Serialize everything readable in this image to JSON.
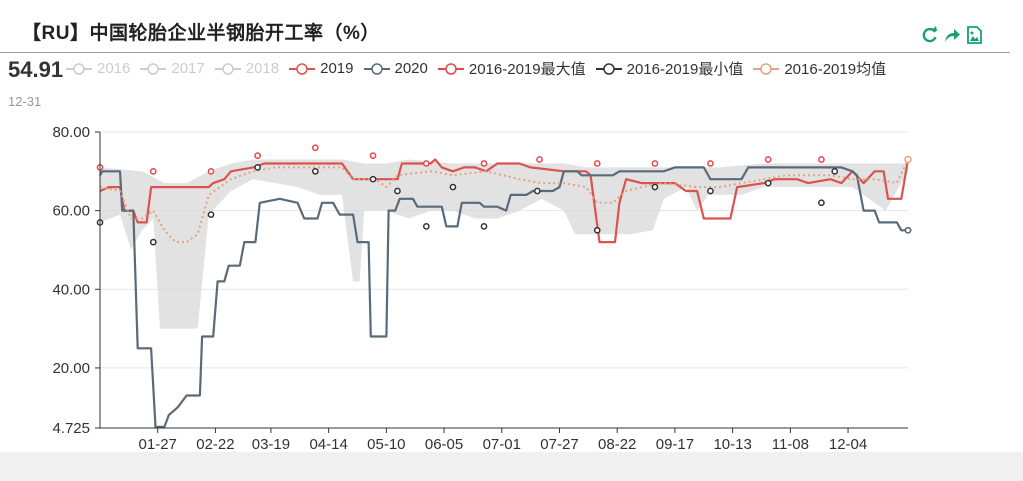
{
  "title": "【RU】中国轮胎企业半钢胎开工率（%）",
  "current": {
    "value": "54.91",
    "date": "12-31"
  },
  "toolbar": {
    "refresh_icon": "refresh-icon",
    "share_icon": "share-icon",
    "save_icon": "save-image-icon"
  },
  "legend": [
    {
      "label": "2016",
      "color": "#cccccc",
      "active": false
    },
    {
      "label": "2017",
      "color": "#cccccc",
      "active": false
    },
    {
      "label": "2018",
      "color": "#cccccc",
      "active": false
    },
    {
      "label": "2019",
      "color": "#d9534f",
      "active": true
    },
    {
      "label": "2020",
      "color": "#5a6a78",
      "active": true
    },
    {
      "label": "2016-2019最大值",
      "color": "#e8454b",
      "active": true
    },
    {
      "label": "2016-2019最小值",
      "color": "#333333",
      "active": true
    },
    {
      "label": "2016-2019均值",
      "color": "#e4a27d",
      "active": true
    }
  ],
  "chart_data": {
    "type": "line",
    "x_ticks": [
      "01-27",
      "02-22",
      "03-19",
      "04-14",
      "05-10",
      "06-05",
      "07-01",
      "07-27",
      "08-22",
      "09-17",
      "10-13",
      "11-08",
      "12-04"
    ],
    "y_ticks": [
      "80.00",
      "60.00",
      "40.00",
      "20.00",
      "4.725"
    ],
    "ylim": [
      4.725,
      80
    ],
    "xlim_day": [
      1,
      365
    ],
    "series": [
      {
        "name": "2019",
        "color": "#d9534f",
        "points": [
          [
            1,
            65
          ],
          [
            5,
            66
          ],
          [
            10,
            66
          ],
          [
            12,
            60
          ],
          [
            16,
            60
          ],
          [
            18,
            57
          ],
          [
            22,
            57
          ],
          [
            24,
            66
          ],
          [
            50,
            66
          ],
          [
            52,
            67
          ],
          [
            57,
            68
          ],
          [
            60,
            70
          ],
          [
            70,
            71
          ],
          [
            75,
            72
          ],
          [
            110,
            72
          ],
          [
            115,
            68
          ],
          [
            135,
            68
          ],
          [
            137,
            72
          ],
          [
            150,
            72
          ],
          [
            152,
            73
          ],
          [
            155,
            71
          ],
          [
            160,
            70
          ],
          [
            165,
            71
          ],
          [
            170,
            71
          ],
          [
            175,
            70
          ],
          [
            180,
            72
          ],
          [
            190,
            72
          ],
          [
            195,
            71
          ],
          [
            210,
            70
          ],
          [
            220,
            70
          ],
          [
            222,
            69
          ],
          [
            226,
            52
          ],
          [
            233,
            52
          ],
          [
            235,
            62
          ],
          [
            238,
            68
          ],
          [
            245,
            67
          ],
          [
            260,
            67
          ],
          [
            265,
            65
          ],
          [
            270,
            65
          ],
          [
            273,
            58
          ],
          [
            285,
            58
          ],
          [
            288,
            66
          ],
          [
            300,
            67
          ],
          [
            305,
            68
          ],
          [
            315,
            68
          ],
          [
            320,
            67
          ],
          [
            330,
            68
          ],
          [
            335,
            67
          ],
          [
            340,
            70
          ],
          [
            345,
            67
          ],
          [
            350,
            70
          ],
          [
            354,
            70
          ],
          [
            356,
            63
          ],
          [
            362,
            63
          ],
          [
            365,
            73
          ]
        ]
      },
      {
        "name": "2020",
        "color": "#5a6a78",
        "points": [
          [
            1,
            69
          ],
          [
            2,
            70
          ],
          [
            10,
            70
          ],
          [
            11,
            60
          ],
          [
            16,
            60
          ],
          [
            18,
            25
          ],
          [
            24,
            25
          ],
          [
            26,
            5
          ],
          [
            30,
            5
          ],
          [
            32,
            8
          ],
          [
            36,
            10
          ],
          [
            40,
            13
          ],
          [
            46,
            13
          ],
          [
            47,
            28
          ],
          [
            52,
            28
          ],
          [
            54,
            42
          ],
          [
            57,
            42
          ],
          [
            59,
            46
          ],
          [
            64,
            46
          ],
          [
            66,
            52
          ],
          [
            71,
            52
          ],
          [
            73,
            62
          ],
          [
            82,
            63
          ],
          [
            90,
            62
          ],
          [
            93,
            58
          ],
          [
            99,
            58
          ],
          [
            101,
            62
          ],
          [
            106,
            62
          ],
          [
            109,
            59
          ],
          [
            115,
            59
          ],
          [
            117,
            52
          ],
          [
            122,
            52
          ],
          [
            123,
            28
          ],
          [
            130,
            28
          ],
          [
            131,
            60
          ],
          [
            134,
            60
          ],
          [
            136,
            63
          ],
          [
            142,
            63
          ],
          [
            144,
            61
          ],
          [
            155,
            61
          ],
          [
            157,
            56
          ],
          [
            162,
            56
          ],
          [
            164,
            62
          ],
          [
            172,
            62
          ],
          [
            174,
            61
          ],
          [
            180,
            61
          ],
          [
            184,
            60
          ],
          [
            186,
            64
          ],
          [
            193,
            64
          ],
          [
            196,
            65
          ],
          [
            205,
            65
          ],
          [
            208,
            66
          ],
          [
            210,
            70
          ],
          [
            216,
            70
          ],
          [
            218,
            69
          ],
          [
            232,
            69
          ],
          [
            235,
            70
          ],
          [
            255,
            70
          ],
          [
            260,
            71
          ],
          [
            273,
            71
          ],
          [
            276,
            68
          ],
          [
            290,
            68
          ],
          [
            293,
            71
          ],
          [
            305,
            71
          ],
          [
            312,
            71
          ],
          [
            320,
            71
          ],
          [
            328,
            71
          ],
          [
            335,
            71
          ],
          [
            340,
            70
          ],
          [
            342,
            69
          ],
          [
            345,
            60
          ],
          [
            350,
            60
          ],
          [
            352,
            57
          ],
          [
            360,
            57
          ],
          [
            362,
            55
          ],
          [
            365,
            55
          ]
        ]
      },
      {
        "name": "2016-2019均值",
        "color": "#e4a27d",
        "dashed": true,
        "points": [
          [
            1,
            66
          ],
          [
            10,
            65
          ],
          [
            15,
            58
          ],
          [
            20,
            58
          ],
          [
            25,
            60
          ],
          [
            30,
            55
          ],
          [
            35,
            52
          ],
          [
            40,
            52
          ],
          [
            45,
            54
          ],
          [
            50,
            64
          ],
          [
            60,
            68
          ],
          [
            70,
            70
          ],
          [
            80,
            71
          ],
          [
            90,
            71
          ],
          [
            110,
            71
          ],
          [
            115,
            68
          ],
          [
            125,
            68
          ],
          [
            130,
            66
          ],
          [
            135,
            69
          ],
          [
            150,
            70
          ],
          [
            160,
            69
          ],
          [
            175,
            70
          ],
          [
            190,
            68
          ],
          [
            200,
            67
          ],
          [
            210,
            67
          ],
          [
            220,
            66
          ],
          [
            225,
            62
          ],
          [
            232,
            62
          ],
          [
            238,
            65
          ],
          [
            245,
            66
          ],
          [
            255,
            67
          ],
          [
            270,
            66
          ],
          [
            280,
            66
          ],
          [
            290,
            67
          ],
          [
            300,
            68
          ],
          [
            310,
            69
          ],
          [
            320,
            69
          ],
          [
            330,
            69
          ],
          [
            340,
            68
          ],
          [
            350,
            68
          ],
          [
            360,
            67
          ],
          [
            365,
            73
          ]
        ]
      }
    ],
    "band": {
      "name": "2016-2019 范围",
      "color": "#d8d8d8",
      "upper": [
        [
          1,
          71
        ],
        [
          20,
          70
        ],
        [
          30,
          67
        ],
        [
          40,
          67
        ],
        [
          50,
          70
        ],
        [
          60,
          72
        ],
        [
          70,
          73
        ],
        [
          80,
          73
        ],
        [
          90,
          73
        ],
        [
          110,
          73
        ],
        [
          120,
          72
        ],
        [
          130,
          72
        ],
        [
          140,
          73
        ],
        [
          160,
          72
        ],
        [
          180,
          72
        ],
        [
          200,
          72
        ],
        [
          210,
          72
        ],
        [
          220,
          71
        ],
        [
          230,
          71
        ],
        [
          240,
          71
        ],
        [
          260,
          71
        ],
        [
          280,
          71
        ],
        [
          300,
          72
        ],
        [
          320,
          72
        ],
        [
          340,
          72
        ],
        [
          365,
          72
        ]
      ],
      "lower": [
        [
          1,
          57
        ],
        [
          10,
          59
        ],
        [
          15,
          50
        ],
        [
          20,
          55
        ],
        [
          25,
          58
        ],
        [
          28,
          30
        ],
        [
          45,
          30
        ],
        [
          50,
          59
        ],
        [
          60,
          65
        ],
        [
          70,
          68
        ],
        [
          80,
          67
        ],
        [
          90,
          66
        ],
        [
          100,
          64
        ],
        [
          110,
          64
        ],
        [
          115,
          42
        ],
        [
          118,
          42
        ],
        [
          120,
          60
        ],
        [
          130,
          60
        ],
        [
          140,
          58
        ],
        [
          150,
          60
        ],
        [
          160,
          60
        ],
        [
          170,
          58
        ],
        [
          180,
          58
        ],
        [
          190,
          60
        ],
        [
          200,
          63
        ],
        [
          210,
          60
        ],
        [
          215,
          54
        ],
        [
          230,
          54
        ],
        [
          240,
          54
        ],
        [
          250,
          55
        ],
        [
          255,
          63
        ],
        [
          265,
          66
        ],
        [
          270,
          60
        ],
        [
          275,
          64
        ],
        [
          290,
          64
        ],
        [
          300,
          66
        ],
        [
          320,
          66
        ],
        [
          340,
          66
        ],
        [
          355,
          60
        ],
        [
          365,
          70
        ]
      ]
    },
    "max_markers": [
      [
        1,
        71
      ],
      [
        25,
        70
      ],
      [
        51,
        70
      ],
      [
        72,
        74
      ],
      [
        98,
        76
      ],
      [
        124,
        74
      ],
      [
        148,
        72
      ],
      [
        174,
        72
      ],
      [
        199,
        73
      ],
      [
        225,
        72
      ],
      [
        251,
        72
      ],
      [
        276,
        72
      ],
      [
        302,
        73
      ],
      [
        326,
        73
      ],
      [
        365,
        73
      ]
    ],
    "min_markers": [
      [
        1,
        57
      ],
      [
        25,
        52
      ],
      [
        51,
        59
      ],
      [
        72,
        71
      ],
      [
        98,
        70
      ],
      [
        124,
        68
      ],
      [
        135,
        65
      ],
      [
        148,
        56
      ],
      [
        160,
        66
      ],
      [
        174,
        56
      ],
      [
        198,
        65
      ],
      [
        225,
        55
      ],
      [
        251,
        66
      ],
      [
        276,
        65
      ],
      [
        302,
        67
      ],
      [
        326,
        62
      ],
      [
        332,
        70
      ],
      [
        365,
        55
      ]
    ]
  }
}
